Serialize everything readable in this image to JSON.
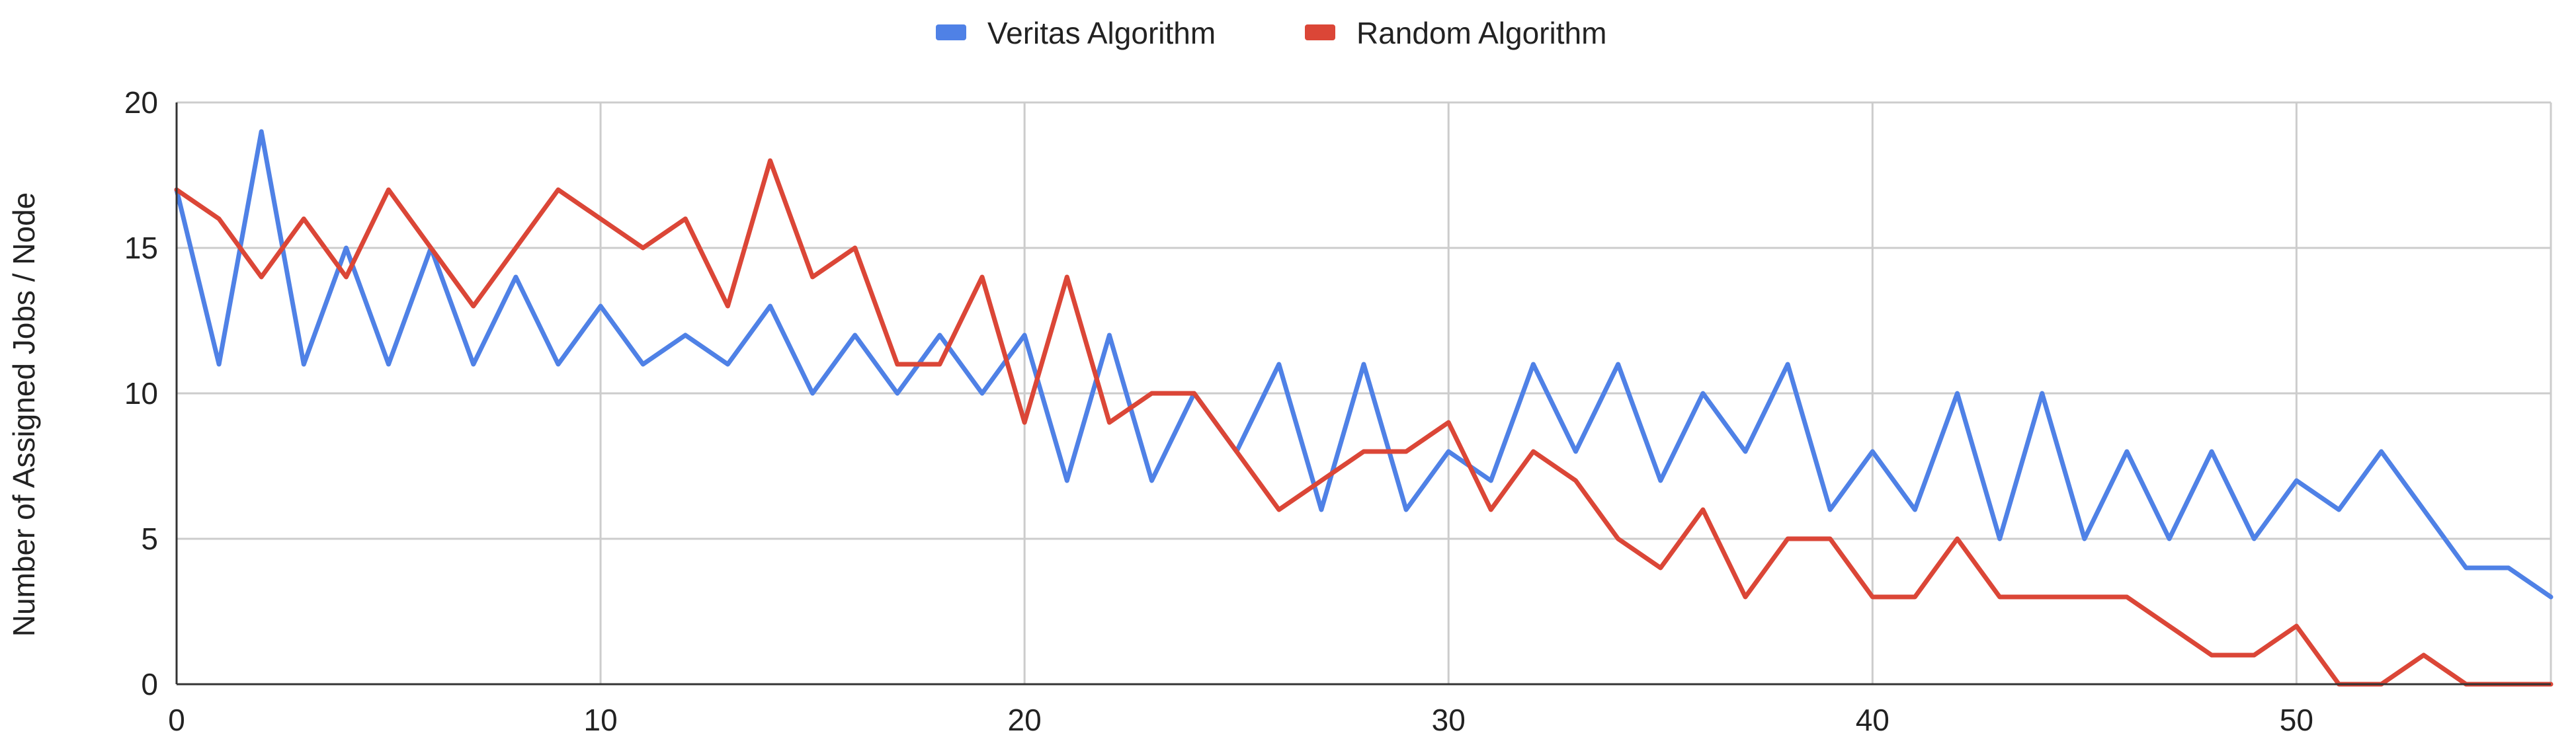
{
  "chart_data": {
    "type": "line",
    "title": "",
    "xlabel": "",
    "ylabel": "Number of Assigned Jobs / Node",
    "x": [
      0,
      1,
      2,
      3,
      4,
      5,
      6,
      7,
      8,
      9,
      10,
      11,
      12,
      13,
      14,
      15,
      16,
      17,
      18,
      19,
      20,
      21,
      22,
      23,
      24,
      25,
      26,
      27,
      28,
      29,
      30,
      31,
      32,
      33,
      34,
      35,
      36,
      37,
      38,
      39,
      40,
      41,
      42,
      43,
      44,
      45,
      46,
      47,
      48,
      49,
      50,
      51,
      52,
      53,
      54,
      55,
      56
    ],
    "xlim": [
      0,
      56
    ],
    "ylim": [
      0,
      20
    ],
    "xticks": [
      0,
      10,
      20,
      30,
      40,
      50
    ],
    "xtick_labels": [
      "0",
      "10",
      "20",
      "30",
      "40",
      "50"
    ],
    "yticks": [
      0,
      5,
      10,
      15,
      20
    ],
    "ytick_labels": [
      "0",
      "5",
      "10",
      "15",
      "20"
    ],
    "grid": true,
    "legend_position": "top",
    "series": [
      {
        "name": "Veritas Algorithm",
        "color": "#4f81e6",
        "values": [
          17,
          11,
          19,
          11,
          15,
          11,
          15,
          11,
          14,
          11,
          13,
          11,
          12,
          11,
          13,
          10,
          12,
          10,
          12,
          10,
          12,
          7,
          12,
          7,
          10,
          8,
          11,
          6,
          11,
          6,
          8,
          7,
          11,
          8,
          11,
          7,
          10,
          8,
          11,
          6,
          8,
          6,
          10,
          5,
          10,
          5,
          8,
          5,
          8,
          5,
          7,
          6,
          8,
          6,
          4,
          4,
          3
        ]
      },
      {
        "name": "Random Algorithm",
        "color": "#db4637",
        "values": [
          17,
          16,
          14,
          16,
          14,
          17,
          15,
          13,
          15,
          17,
          16,
          15,
          16,
          13,
          18,
          14,
          15,
          11,
          11,
          14,
          9,
          14,
          9,
          10,
          10,
          8,
          6,
          7,
          8,
          8,
          9,
          6,
          8,
          7,
          5,
          4,
          6,
          3,
          5,
          5,
          3,
          3,
          5,
          3,
          3,
          3,
          3,
          2,
          1,
          1,
          2,
          0,
          0,
          1,
          0,
          0,
          0
        ]
      }
    ]
  }
}
